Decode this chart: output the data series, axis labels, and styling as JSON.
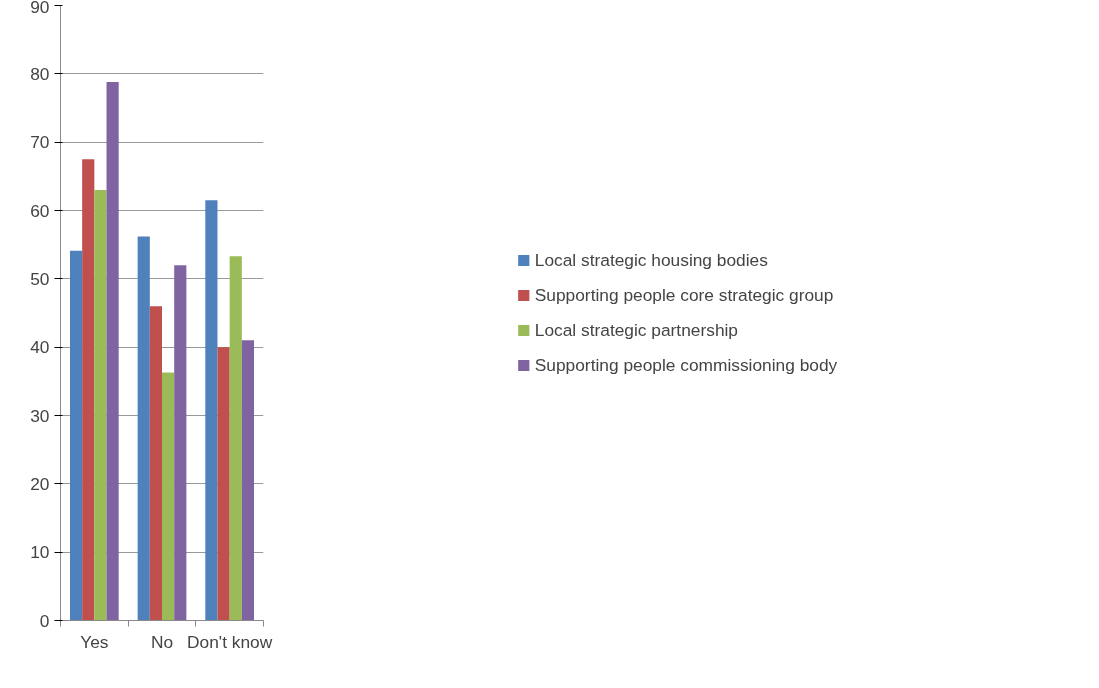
{
  "chart_data": {
    "type": "bar",
    "categories": [
      "Yes",
      "No",
      "Don't know"
    ],
    "series": [
      {
        "name": "Local strategic housing bodies",
        "color": "#4f81bd",
        "values": [
          54.1,
          56.2,
          61.5
        ]
      },
      {
        "name": "Supporting people core strategic group",
        "color": "#c0504d",
        "values": [
          67.5,
          46.0,
          40.0
        ]
      },
      {
        "name": "Local strategic partnership",
        "color": "#9bbb59",
        "values": [
          63.0,
          36.3,
          53.3
        ]
      },
      {
        "name": "Supporting people commissioning body",
        "color": "#8064a2",
        "values": [
          78.8,
          52.0,
          41.0
        ]
      }
    ],
    "ylim": [
      0,
      90
    ],
    "yticks": [
      0,
      10,
      20,
      30,
      40,
      50,
      60,
      70,
      80,
      90
    ],
    "grid": "y",
    "legend": "right"
  }
}
